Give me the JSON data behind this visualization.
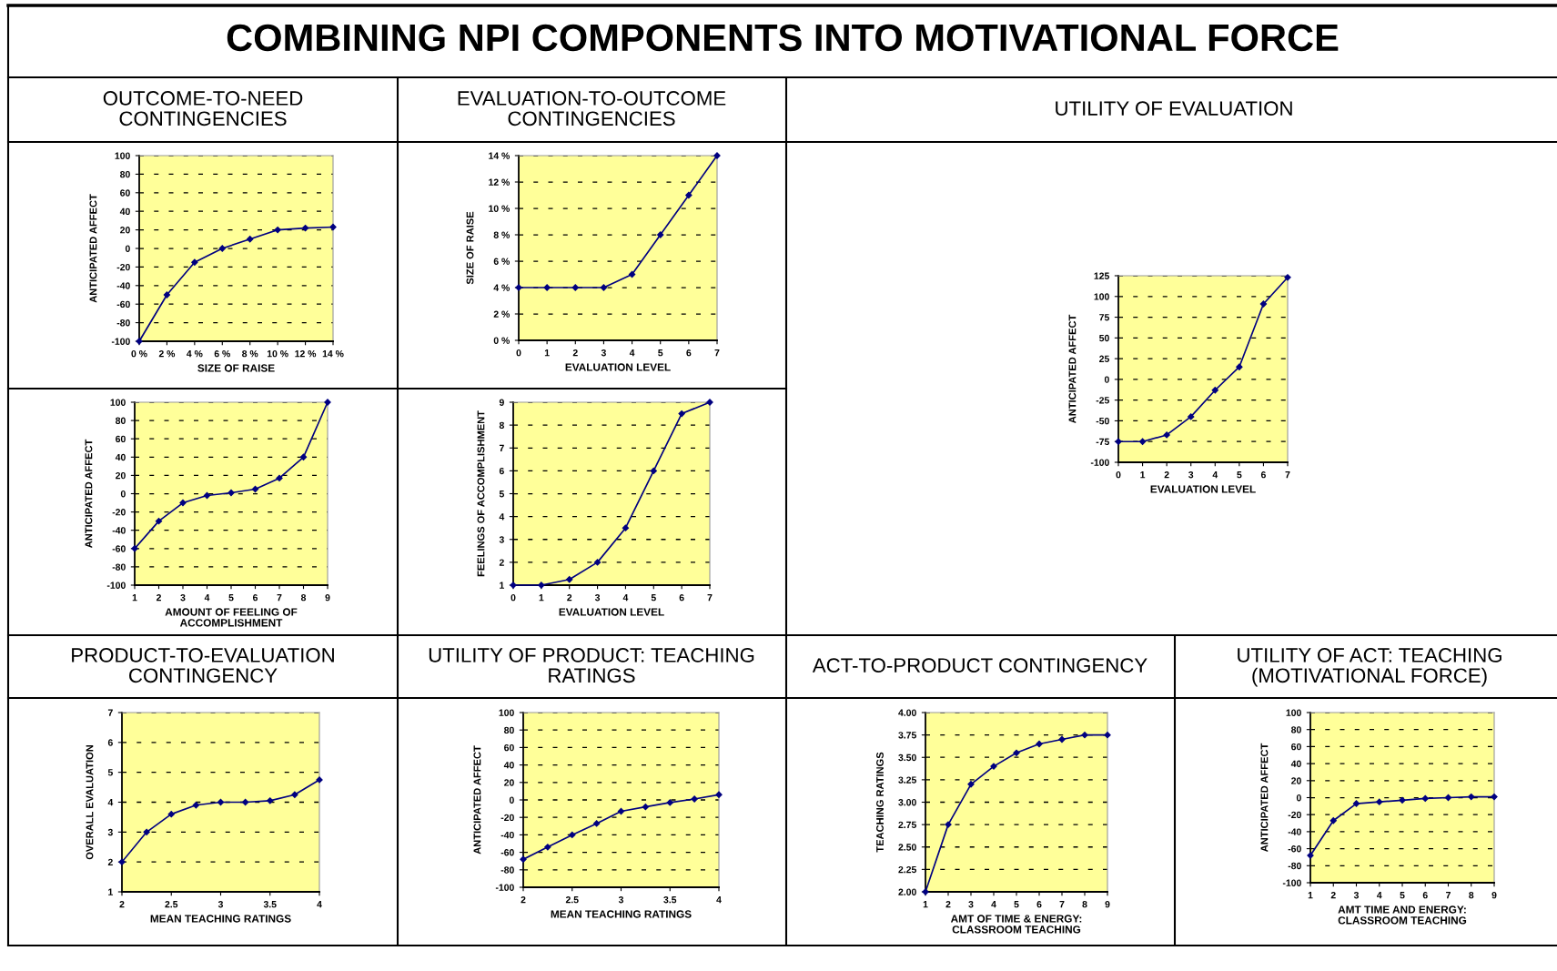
{
  "chart_data": [
    {
      "type": "other",
      "title": "COMBINING NPI COMPONENTS INTO MOTIVATIONAL FORCE"
    },
    {
      "type": "line",
      "title": "OUTCOME-TO-NEED\nCONTINGENCIES",
      "xlabel": "SIZE OF RAISE",
      "ylabel": "ANTICIPATED AFFECT",
      "x": [
        0,
        2,
        4,
        6,
        8,
        10,
        12,
        14
      ],
      "series": [
        {
          "color": "#000080",
          "values": [
            -100,
            -50,
            -15,
            0,
            10,
            20,
            22,
            23
          ]
        }
      ],
      "xlim": [
        0,
        14
      ],
      "xticks": [
        {
          "value": 0,
          "label": "0 %"
        },
        {
          "value": 2,
          "label": "2 %"
        },
        {
          "value": 4,
          "label": "4 %"
        },
        {
          "value": 6,
          "label": "6 %"
        },
        {
          "value": 8,
          "label": "8 %"
        },
        {
          "value": 10,
          "label": "10 %"
        },
        {
          "value": 12,
          "label": "12 %"
        },
        {
          "value": 14,
          "label": "14 %"
        }
      ],
      "ylim": [
        -100,
        100
      ],
      "yticks": [
        -100,
        -80,
        -60,
        -40,
        -20,
        0,
        20,
        40,
        60,
        80,
        100
      ],
      "grid": "y",
      "marker": "diamond",
      "line_style": "solid"
    },
    {
      "type": "line",
      "title": "EVALUATION-TO-OUTCOME\nCONTINGENCIES",
      "xlabel": "EVALUATION LEVEL",
      "ylabel": "SIZE OF RAISE",
      "x": [
        0,
        1,
        2,
        3,
        4,
        5,
        6,
        7
      ],
      "series": [
        {
          "color": "#000080",
          "values": [
            4,
            4,
            4,
            4,
            5,
            8,
            11,
            14
          ]
        }
      ],
      "xlim": [
        0,
        7
      ],
      "xticks": [
        0,
        1,
        2,
        3,
        4,
        5,
        6,
        7
      ],
      "ylim": [
        0,
        14
      ],
      "yticks": [
        {
          "value": 0,
          "label": "0 %"
        },
        {
          "value": 2,
          "label": "2 %"
        },
        {
          "value": 4,
          "label": "4 %"
        },
        {
          "value": 6,
          "label": "6 %"
        },
        {
          "value": 8,
          "label": "8 %"
        },
        {
          "value": 10,
          "label": "10 %"
        },
        {
          "value": 12,
          "label": "12 %"
        },
        {
          "value": 14,
          "label": "14 %"
        }
      ],
      "grid": "y",
      "marker": "diamond",
      "line_style": "solid"
    },
    {
      "type": "line",
      "title": "UTILITY OF EVALUATION",
      "xlabel": "EVALUATION LEVEL",
      "ylabel": "ANTICIPATED AFFECT",
      "x": [
        0,
        1,
        2,
        3,
        4,
        5,
        6,
        7
      ],
      "series": [
        {
          "color": "#000080",
          "values": [
            -75,
            -75,
            -67,
            -45,
            -13,
            15,
            91,
            123
          ]
        }
      ],
      "xlim": [
        0,
        7
      ],
      "xticks": [
        0,
        1,
        2,
        3,
        4,
        5,
        6,
        7
      ],
      "ylim": [
        -100,
        125
      ],
      "yticks": [
        -100,
        -75,
        -50,
        -25,
        0,
        25,
        50,
        75,
        100,
        125
      ],
      "grid": "y",
      "marker": "diamond",
      "line_style": "solid"
    },
    {
      "type": "line",
      "xlabel": "AMOUNT OF FEELING OF\nACCOMPLISHMENT",
      "ylabel": "ANTICIPATED AFFECT",
      "x": [
        1,
        2,
        3,
        4,
        5,
        6,
        7,
        8,
        9
      ],
      "series": [
        {
          "color": "#000080",
          "values": [
            -60,
            -30,
            -10,
            -2,
            1,
            5,
            17,
            40,
            100
          ]
        }
      ],
      "xlim": [
        1,
        9
      ],
      "xticks": [
        1,
        2,
        3,
        4,
        5,
        6,
        7,
        8,
        9
      ],
      "ylim": [
        -100,
        100
      ],
      "yticks": [
        -100,
        -80,
        -60,
        -40,
        -20,
        0,
        20,
        40,
        60,
        80,
        100
      ],
      "grid": "y",
      "marker": "diamond",
      "line_style": "solid"
    },
    {
      "type": "line",
      "xlabel": "EVALUATION LEVEL",
      "ylabel": "FEELINGS OF ACCOMPLISHMENT",
      "x": [
        0,
        1,
        2,
        3,
        4,
        5,
        6,
        7
      ],
      "series": [
        {
          "color": "#000080",
          "values": [
            1,
            1,
            1.25,
            2,
            3.5,
            6,
            8.5,
            9
          ]
        }
      ],
      "xlim": [
        0,
        7
      ],
      "xticks": [
        0,
        1,
        2,
        3,
        4,
        5,
        6,
        7
      ],
      "ylim": [
        1,
        9
      ],
      "yticks": [
        1,
        2,
        3,
        4,
        5,
        6,
        7,
        8,
        9
      ],
      "grid": "y",
      "marker": "diamond",
      "line_style": "solid"
    },
    {
      "type": "line",
      "title": "PRODUCT-TO-EVALUATION\nCONTINGENCY",
      "xlabel": "MEAN TEACHING RATINGS",
      "ylabel": "OVERALL EVALUATION",
      "x": [
        2,
        2.25,
        2.5,
        2.75,
        3,
        3.25,
        3.5,
        3.75,
        4
      ],
      "series": [
        {
          "color": "#000080",
          "values": [
            2,
            3,
            3.6,
            3.9,
            4,
            4,
            4.05,
            4.25,
            4.75
          ]
        }
      ],
      "xlim": [
        2,
        4
      ],
      "xticks": [
        2,
        2.5,
        3,
        3.5,
        4
      ],
      "ylim": [
        1,
        7
      ],
      "yticks": [
        1,
        2,
        3,
        4,
        5,
        6,
        7
      ],
      "grid": "y",
      "marker": "diamond",
      "line_style": "solid"
    },
    {
      "type": "line",
      "title": "UTILITY OF PRODUCT: TEACHING\nRATINGS",
      "xlabel": "MEAN TEACHING RATINGS",
      "ylabel": "ANTICIPATED AFFECT",
      "x": [
        2,
        2.25,
        2.5,
        2.75,
        3,
        3.25,
        3.5,
        3.75,
        4
      ],
      "series": [
        {
          "color": "#000080",
          "values": [
            -68,
            -54,
            -40,
            -27,
            -13,
            -8,
            -3,
            1,
            6
          ]
        }
      ],
      "xlim": [
        2,
        4
      ],
      "xticks": [
        2,
        2.5,
        3,
        3.5,
        4
      ],
      "ylim": [
        -100,
        100
      ],
      "yticks": [
        -100,
        -80,
        -60,
        -40,
        -20,
        0,
        20,
        40,
        60,
        80,
        100
      ],
      "grid": "y",
      "marker": "diamond",
      "line_style": "solid"
    },
    {
      "type": "line",
      "title": "ACT-TO-PRODUCT CONTINGENCY",
      "xlabel": "AMT OF TIME & ENERGY:\nCLASSROOM TEACHING",
      "ylabel": "TEACHING RATINGS",
      "x": [
        1,
        2,
        3,
        4,
        5,
        6,
        7,
        8,
        9
      ],
      "series": [
        {
          "color": "#000080",
          "values": [
            2,
            2.75,
            3.2,
            3.4,
            3.55,
            3.65,
            3.7,
            3.75,
            3.75
          ]
        }
      ],
      "xlim": [
        1,
        9
      ],
      "xticks": [
        1,
        2,
        3,
        4,
        5,
        6,
        7,
        8,
        9
      ],
      "ylim": [
        2,
        4
      ],
      "yticks": [
        {
          "value": 2,
          "label": "2.00"
        },
        {
          "value": 2.25,
          "label": "2.25"
        },
        {
          "value": 2.5,
          "label": "2.50"
        },
        {
          "value": 2.75,
          "label": "2.75"
        },
        {
          "value": 3,
          "label": "3.00"
        },
        {
          "value": 3.25,
          "label": "3.25"
        },
        {
          "value": 3.5,
          "label": "3.50"
        },
        {
          "value": 3.75,
          "label": "3.75"
        },
        {
          "value": 4,
          "label": "4.00"
        }
      ],
      "grid": "y",
      "marker": "diamond",
      "line_style": "solid"
    },
    {
      "type": "line",
      "title": "UTILITY OF ACT: TEACHING\n(MOTIVATIONAL FORCE)",
      "xlabel": "AMT TIME AND ENERGY:\nCLASSROOM TEACHING",
      "ylabel": "ANTICIPATED AFFECT",
      "x": [
        1,
        2,
        3,
        4,
        5,
        6,
        7,
        8,
        9
      ],
      "series": [
        {
          "color": "#000080",
          "values": [
            -68,
            -27,
            -7,
            -5,
            -3,
            -1,
            0,
            1,
            1
          ]
        }
      ],
      "xlim": [
        1,
        9
      ],
      "xticks": [
        1,
        2,
        3,
        4,
        5,
        6,
        7,
        8,
        9
      ],
      "ylim": [
        -100,
        100
      ],
      "yticks": [
        -100,
        -80,
        -60,
        -40,
        -20,
        0,
        20,
        40,
        60,
        80,
        100
      ],
      "grid": "y",
      "marker": "diamond",
      "line_style": "solid"
    }
  ]
}
